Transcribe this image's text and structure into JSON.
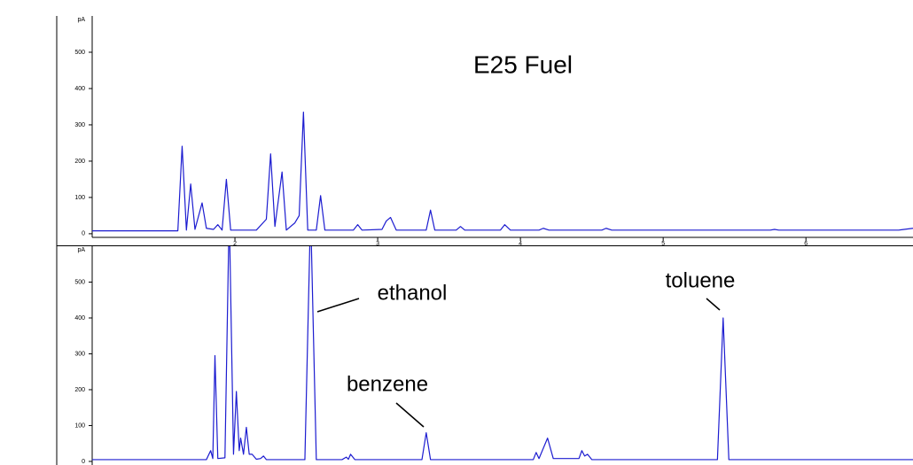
{
  "chart_data": [
    {
      "type": "line",
      "title": "E25 Fuel",
      "y_label": "pA",
      "xlim": [
        1,
        6.75
      ],
      "ylim": [
        -10,
        600
      ],
      "xticks": [
        2,
        3,
        4,
        5,
        6
      ],
      "yticks": [
        0,
        100,
        200,
        300,
        400,
        500
      ],
      "x": [
        1.0,
        1.6,
        1.63,
        1.66,
        1.69,
        1.72,
        1.77,
        1.8,
        1.85,
        1.88,
        1.91,
        1.94,
        1.97,
        2.15,
        2.22,
        2.25,
        2.28,
        2.33,
        2.36,
        2.42,
        2.45,
        2.48,
        2.51,
        2.57,
        2.6,
        2.63,
        2.83,
        2.86,
        2.89,
        3.03,
        3.06,
        3.09,
        3.13,
        3.34,
        3.37,
        3.4,
        3.55,
        3.58,
        3.61,
        3.86,
        3.89,
        3.93,
        4.13,
        4.16,
        4.2,
        4.57,
        4.6,
        4.64,
        5.75,
        5.78,
        5.81,
        6.65,
        6.75
      ],
      "series": [
        {
          "color": "#1c1cd0",
          "values": [
            8,
            8,
            241,
            10,
            137,
            12,
            85,
            15,
            12,
            25,
            10,
            150,
            10,
            10,
            40,
            220,
            20,
            170,
            10,
            30,
            50,
            335,
            10,
            10,
            105,
            10,
            10,
            25,
            10,
            12,
            35,
            45,
            10,
            10,
            65,
            10,
            10,
            20,
            10,
            10,
            25,
            10,
            10,
            15,
            10,
            10,
            15,
            10,
            10,
            12,
            10,
            10,
            15
          ]
        }
      ]
    },
    {
      "type": "line",
      "y_label": "pA",
      "xlim": [
        1,
        6.75
      ],
      "ylim": [
        -10,
        600
      ],
      "yticks": [
        0,
        100,
        200,
        300,
        400,
        500
      ],
      "annotations": [
        "ethanol",
        "toluene",
        "benzene"
      ],
      "x": [
        1.0,
        1.8,
        1.83,
        1.845,
        1.86,
        1.88,
        1.93,
        1.96,
        1.99,
        2.01,
        2.03,
        2.04,
        2.06,
        2.08,
        2.1,
        2.12,
        2.15,
        2.18,
        2.2,
        2.22,
        2.49,
        2.53,
        2.57,
        2.75,
        2.78,
        2.795,
        2.81,
        2.84,
        3.31,
        3.34,
        3.37,
        4.09,
        4.11,
        4.13,
        4.19,
        4.23,
        4.41,
        4.43,
        4.45,
        4.47,
        4.5,
        5.38,
        5.42,
        5.46,
        6.75
      ],
      "series": [
        {
          "color": "#1c1cd0",
          "values": [
            5,
            5,
            30,
            8,
            295,
            8,
            10,
            700,
            20,
            195,
            30,
            65,
            20,
            95,
            20,
            20,
            6,
            8,
            15,
            5,
            5,
            700,
            5,
            5,
            12,
            6,
            20,
            5,
            5,
            80,
            5,
            5,
            25,
            8,
            65,
            8,
            8,
            30,
            15,
            20,
            5,
            5,
            400,
            5,
            5
          ]
        }
      ]
    }
  ]
}
